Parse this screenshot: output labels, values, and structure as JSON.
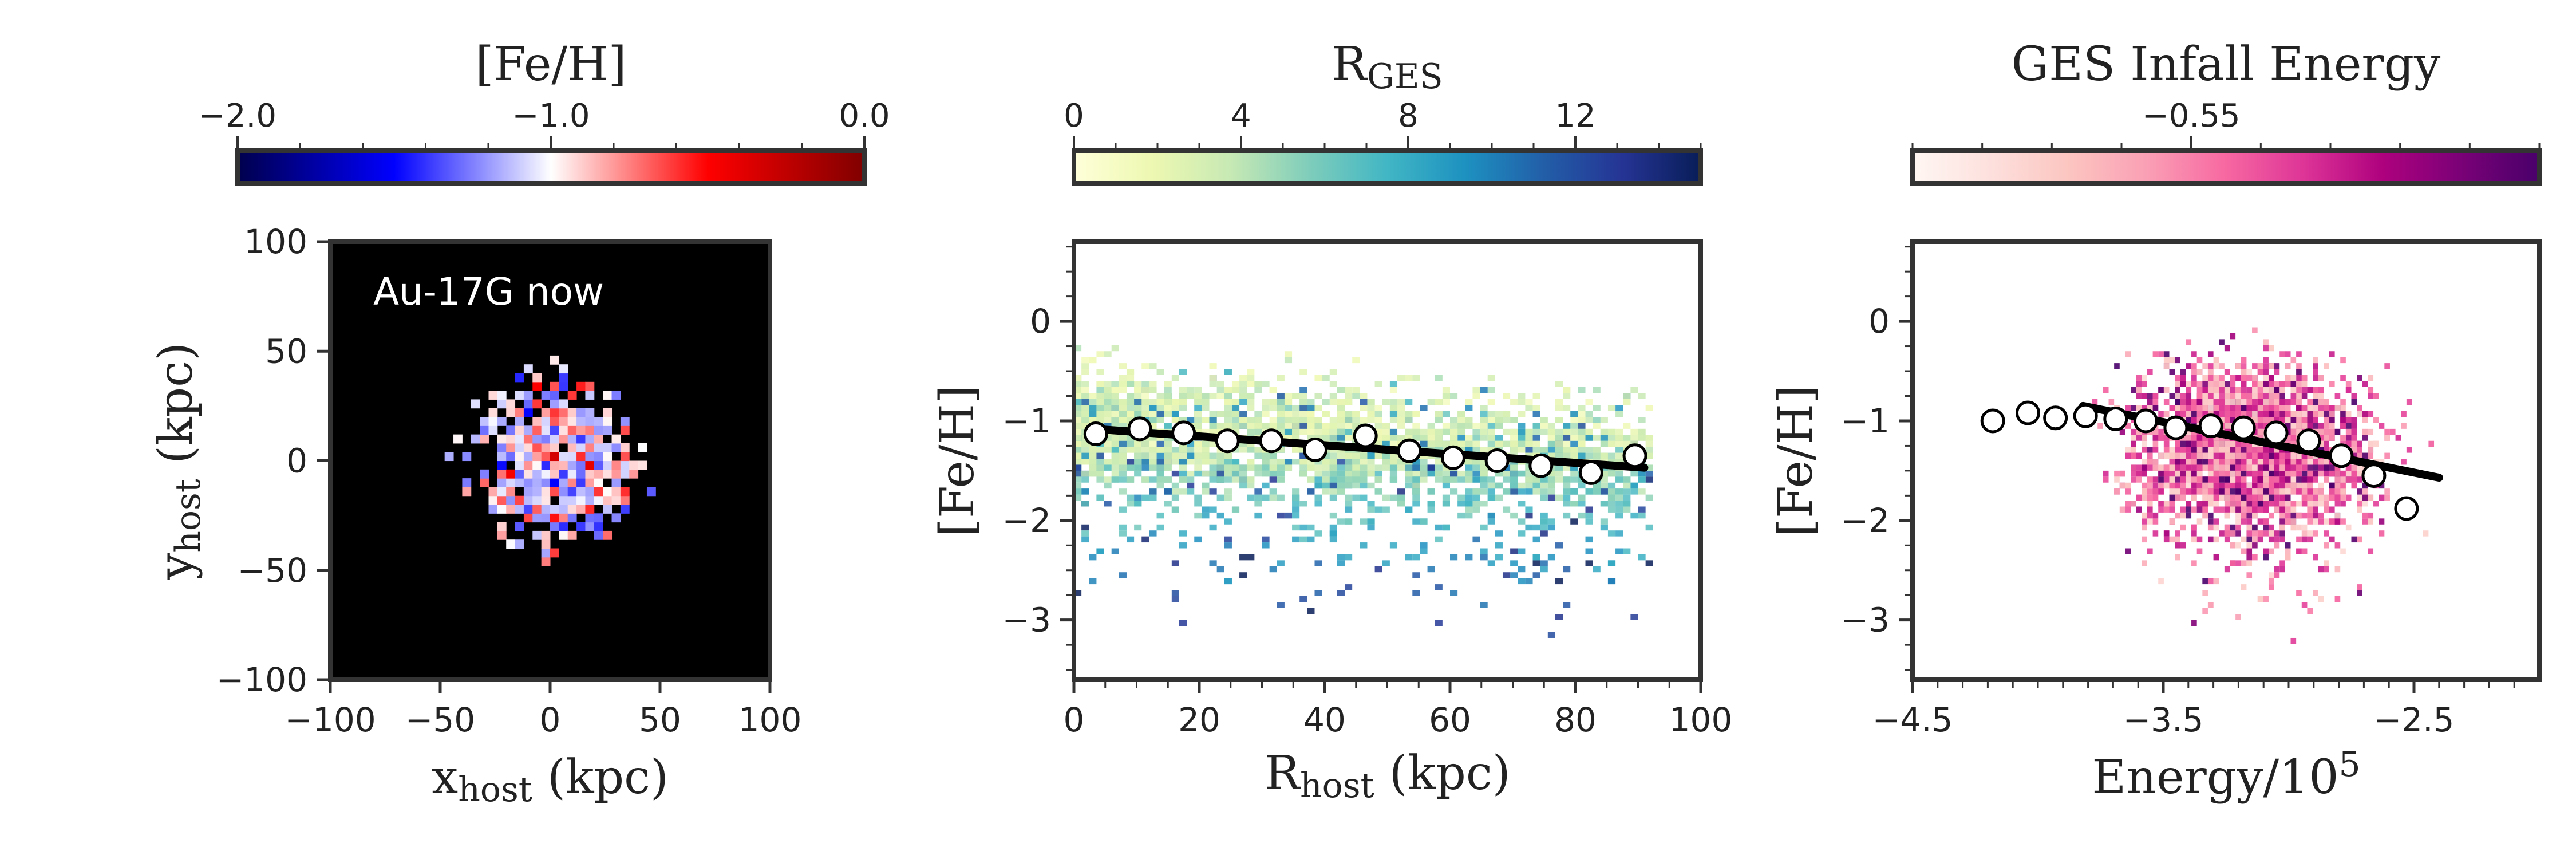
{
  "chart_data": [
    {
      "type": "heatmap",
      "panel": "left",
      "annotation": "Au-17G now",
      "xlabel": "x",
      "xlabel_sub": "host",
      "xlabel_unit": " (kpc)",
      "ylabel": "y",
      "ylabel_sub": "host",
      "ylabel_unit": " (kpc)",
      "xlim": [
        -100,
        100
      ],
      "ylim": [
        -100,
        100
      ],
      "xticks": [
        -100,
        -50,
        0,
        50,
        100
      ],
      "yticks": [
        -100,
        -50,
        0,
        50,
        100
      ],
      "xtick_labels": [
        "−100",
        "−50",
        "0",
        "50",
        "100"
      ],
      "ytick_labels": [
        "−100",
        "−50",
        "0",
        "50",
        "100"
      ],
      "background": "#000000",
      "blob": {
        "center": [
          0,
          0
        ],
        "radius": 42,
        "cell": 4
      },
      "colorbar": {
        "title": "[Fe/H]",
        "range": [
          -2.0,
          0.0
        ],
        "ticks": [
          -2.0,
          -1.0,
          0.0
        ],
        "tick_labels": [
          "−2.0",
          "−1.0",
          "0.0"
        ],
        "colormap": [
          "#00004d",
          "#0000ff",
          "#ffffff",
          "#ff0000",
          "#800000"
        ]
      }
    },
    {
      "type": "scatter",
      "panel": "middle",
      "xlabel": "R",
      "xlabel_sub": "host",
      "xlabel_unit": " (kpc)",
      "ylabel": "[Fe/H]",
      "xlim": [
        0,
        100
      ],
      "ylim": [
        -3.6,
        0.8
      ],
      "xticks": [
        0,
        20,
        40,
        60,
        80,
        100
      ],
      "yticks": [
        -3,
        -2,
        -1,
        0
      ],
      "xtick_labels": [
        "0",
        "20",
        "40",
        "60",
        "80",
        "100"
      ],
      "ytick_labels": [
        "−3",
        "−2",
        "−1",
        "0"
      ],
      "series": [
        {
          "kind": "median-points",
          "x": [
            3.5,
            10.5,
            17.5,
            24.5,
            31.5,
            38.5,
            46.5,
            53.5,
            60.5,
            67.5,
            74.5,
            82.5,
            89.5
          ],
          "y": [
            -1.13,
            -1.08,
            -1.12,
            -1.2,
            -1.2,
            -1.29,
            -1.15,
            -1.3,
            -1.37,
            -1.4,
            -1.45,
            -1.52,
            -1.35
          ]
        },
        {
          "kind": "fit-line",
          "x": [
            3,
            91
          ],
          "y": [
            -1.08,
            -1.47
          ]
        }
      ],
      "colorbar": {
        "title": "R",
        "title_sub": "GES",
        "range": [
          0,
          15
        ],
        "ticks": [
          0,
          4,
          8,
          12
        ],
        "tick_labels": [
          "0",
          "4",
          "8",
          "12"
        ],
        "colormap": [
          "#ffffd9",
          "#edf8b1",
          "#c7e9b4",
          "#7fcdbb",
          "#41b6c4",
          "#1d91c0",
          "#225ea8",
          "#253494",
          "#081d58"
        ]
      }
    },
    {
      "type": "scatter",
      "panel": "right",
      "xlabel": "Energy/10",
      "xlabel_sup": "5",
      "ylabel": "[Fe/H]",
      "xlim": [
        -4.5,
        -2.0
      ],
      "ylim": [
        -3.6,
        0.8
      ],
      "xticks": [
        -4.5,
        -3.5,
        -2.5
      ],
      "yticks": [
        -3,
        -2,
        -1,
        0
      ],
      "xtick_labels": [
        "−4.5",
        "−3.5",
        "−2.5"
      ],
      "ytick_labels": [
        "−3",
        "−2",
        "−1",
        "0"
      ],
      "series": [
        {
          "kind": "median-points",
          "x": [
            -4.18,
            -4.04,
            -3.93,
            -3.81,
            -3.69,
            -3.57,
            -3.45,
            -3.31,
            -3.18,
            -3.05,
            -2.92,
            -2.79,
            -2.66,
            -2.53
          ],
          "y": [
            -1.0,
            -0.92,
            -0.97,
            -0.95,
            -0.98,
            -1.0,
            -1.07,
            -1.05,
            -1.07,
            -1.12,
            -1.2,
            -1.35,
            -1.55,
            -1.88
          ]
        },
        {
          "kind": "fit-line",
          "x": [
            -3.82,
            -2.4
          ],
          "y": [
            -0.85,
            -1.57
          ]
        }
      ],
      "colorbar": {
        "title": "GES Infall Energy",
        "range": [
          -0.75,
          -0.3
        ],
        "ticks": [
          -0.55
        ],
        "tick_labels": [
          "−0.55"
        ],
        "colormap": [
          "#fff7f3",
          "#fde0dd",
          "#fcc5c0",
          "#fa9fb5",
          "#f768a1",
          "#dd3497",
          "#ae017e",
          "#7a0177",
          "#49006a"
        ]
      }
    }
  ]
}
